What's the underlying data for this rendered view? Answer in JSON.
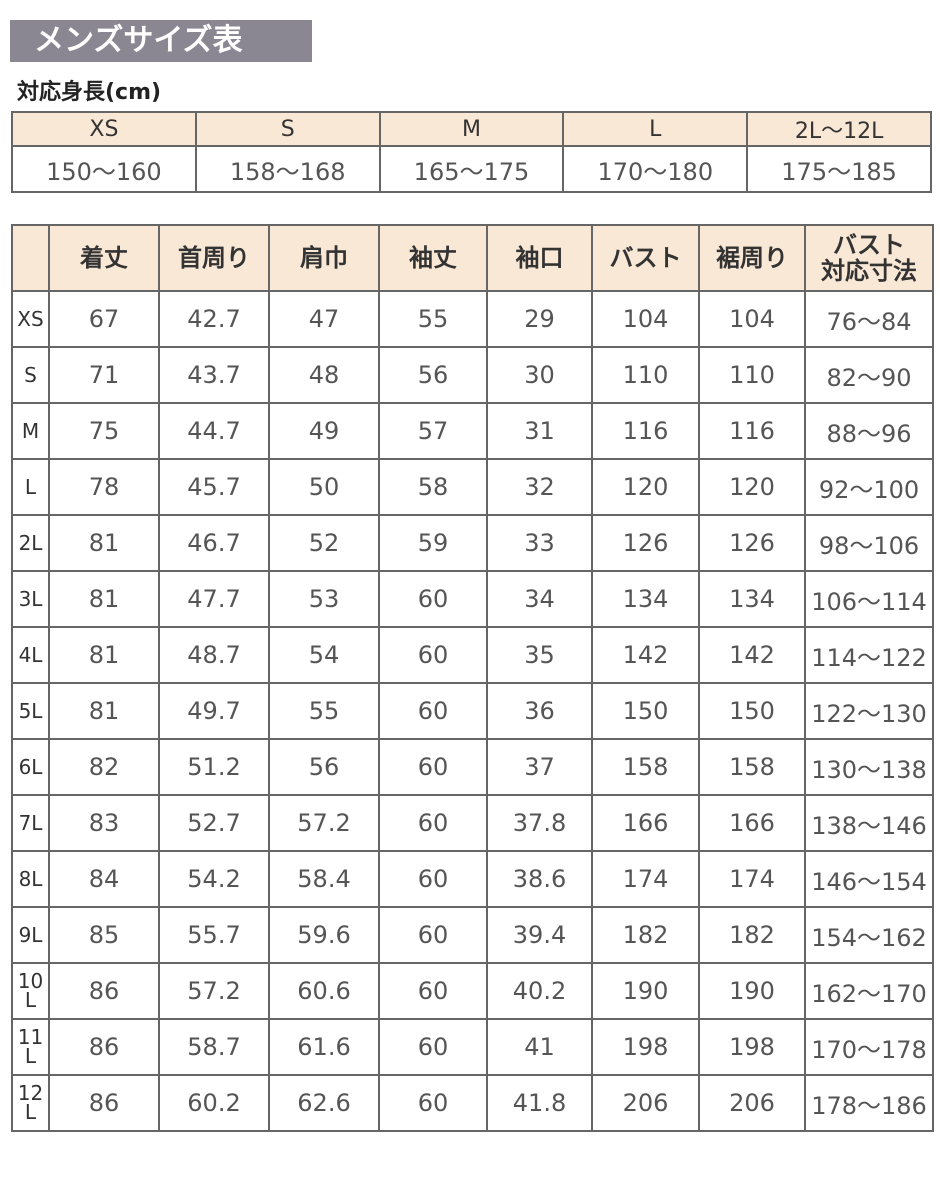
{
  "title": "メンズサイズ表",
  "height_label": "対応身長(cm)",
  "height_table": {
    "sizes": [
      "XS",
      "S",
      "M",
      "L",
      "2L〜12L"
    ],
    "ranges": [
      "150〜160",
      "158〜168",
      "165〜175",
      "170〜180",
      "175〜185"
    ]
  },
  "colors": {
    "title_bg": "#8a8692",
    "header_bg": "#fae8d6",
    "border": "#666666"
  },
  "size_table": {
    "headers": [
      "",
      "着丈",
      "首周り",
      "肩巾",
      "袖丈",
      "袖口",
      "バスト",
      "裾周り",
      "バスト\n対応寸法"
    ],
    "rows": [
      [
        "XS",
        "67",
        "42.7",
        "47",
        "55",
        "29",
        "104",
        "104",
        "76〜84"
      ],
      [
        "S",
        "71",
        "43.7",
        "48",
        "56",
        "30",
        "110",
        "110",
        "82〜90"
      ],
      [
        "M",
        "75",
        "44.7",
        "49",
        "57",
        "31",
        "116",
        "116",
        "88〜96"
      ],
      [
        "L",
        "78",
        "45.7",
        "50",
        "58",
        "32",
        "120",
        "120",
        "92〜100"
      ],
      [
        "2L",
        "81",
        "46.7",
        "52",
        "59",
        "33",
        "126",
        "126",
        "98〜106"
      ],
      [
        "3L",
        "81",
        "47.7",
        "53",
        "60",
        "34",
        "134",
        "134",
        "106〜114"
      ],
      [
        "4L",
        "81",
        "48.7",
        "54",
        "60",
        "35",
        "142",
        "142",
        "114〜122"
      ],
      [
        "5L",
        "81",
        "49.7",
        "55",
        "60",
        "36",
        "150",
        "150",
        "122〜130"
      ],
      [
        "6L",
        "82",
        "51.2",
        "56",
        "60",
        "37",
        "158",
        "158",
        "130〜138"
      ],
      [
        "7L",
        "83",
        "52.7",
        "57.2",
        "60",
        "37.8",
        "166",
        "166",
        "138〜146"
      ],
      [
        "8L",
        "84",
        "54.2",
        "58.4",
        "60",
        "38.6",
        "174",
        "174",
        "146〜154"
      ],
      [
        "9L",
        "85",
        "55.7",
        "59.6",
        "60",
        "39.4",
        "182",
        "182",
        "154〜162"
      ],
      [
        "10L",
        "86",
        "57.2",
        "60.6",
        "60",
        "40.2",
        "190",
        "190",
        "162〜170"
      ],
      [
        "11L",
        "86",
        "58.7",
        "61.6",
        "60",
        "41",
        "198",
        "198",
        "170〜178"
      ],
      [
        "12L",
        "86",
        "60.2",
        "62.6",
        "60",
        "41.8",
        "206",
        "206",
        "178〜186"
      ]
    ]
  }
}
